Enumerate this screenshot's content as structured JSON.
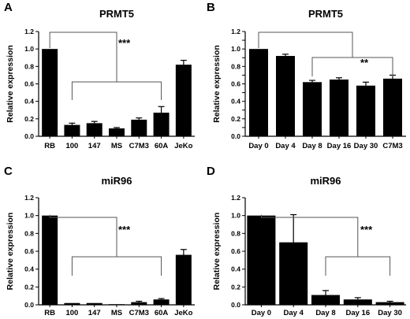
{
  "chart_data": [
    {
      "type": "bar",
      "panel": "A",
      "title": "PRMT5",
      "ylabel": "Relative expression",
      "categories": [
        "RB",
        "100",
        "147",
        "MS",
        "C7M3",
        "60A",
        "JeKo"
      ],
      "values": [
        1.0,
        0.13,
        0.15,
        0.09,
        0.19,
        0.27,
        0.82
      ],
      "errors": [
        0.0,
        0.02,
        0.02,
        0.01,
        0.02,
        0.07,
        0.05
      ],
      "ylim": [
        0,
        1.2
      ],
      "yticks": [
        "0.0",
        "0.2",
        "0.4",
        "0.6",
        "0.8",
        "1.0",
        "1.2"
      ],
      "significance": "***"
    },
    {
      "type": "bar",
      "panel": "B",
      "title": "PRMT5",
      "ylabel": "Relative expression",
      "categories": [
        "Day 0",
        "Day 4",
        "Day 8",
        "Day 16",
        "Day 30",
        "C7M3"
      ],
      "values": [
        1.0,
        0.92,
        0.62,
        0.65,
        0.58,
        0.66
      ],
      "errors": [
        0.0,
        0.02,
        0.02,
        0.02,
        0.04,
        0.04
      ],
      "ylim": [
        0,
        1.2
      ],
      "yticks": [
        "0.0",
        "0.1",
        "0.2",
        "0.3",
        "0.4",
        "0.5",
        "0.6",
        "0.7",
        "0.8",
        "0.9",
        "1.0",
        "1.1",
        "1.2"
      ],
      "significance": "**"
    },
    {
      "type": "bar",
      "panel": "C",
      "title": "miR96",
      "ylabel": "Relative expression",
      "categories": [
        "RB",
        "100",
        "147",
        "MS",
        "C7M3",
        "60A",
        "JeKo"
      ],
      "values": [
        1.0,
        0.02,
        0.02,
        0.0,
        0.03,
        0.06,
        0.56
      ],
      "errors": [
        0.0,
        0.0,
        0.0,
        0.0,
        0.01,
        0.01,
        0.06
      ],
      "ylim": [
        0,
        1.2
      ],
      "yticks": [
        "0.0",
        "0.2",
        "0.4",
        "0.6",
        "0.8",
        "1.0",
        "1.2"
      ],
      "significance": "***"
    },
    {
      "type": "bar",
      "panel": "D",
      "title": "miR96",
      "ylabel": "Relative expression",
      "categories": [
        "Day 0",
        "Day 4",
        "Day 8",
        "Day 16",
        "Day 30"
      ],
      "values": [
        1.0,
        0.7,
        0.11,
        0.06,
        0.03
      ],
      "errors": [
        0.0,
        0.31,
        0.05,
        0.02,
        0.01
      ],
      "ylim": [
        0,
        1.2
      ],
      "yticks": [
        "0.0",
        "0.2",
        "0.4",
        "0.6",
        "0.8",
        "1.0",
        "1.2"
      ],
      "significance": "***"
    }
  ]
}
